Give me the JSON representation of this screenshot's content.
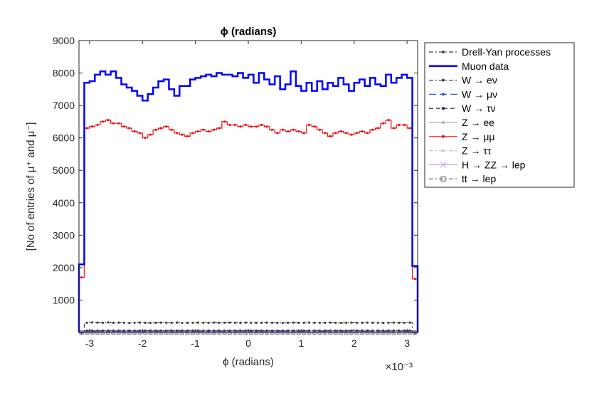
{
  "chart_data": {
    "type": "line",
    "title": "ϕ (radians)",
    "xlabel": "ϕ (radians)",
    "ylabel": "[No of entries of μ⁺ and μ⁻]",
    "x_exponent_label": "×10⁻³",
    "xlim": [
      -3.2,
      3.2
    ],
    "ylim": [
      0,
      9000
    ],
    "x_ticks": [
      -3,
      -2,
      -1,
      0,
      1,
      2,
      3
    ],
    "x_tick_labels": [
      "-3",
      "-2",
      "-1",
      "0",
      "1",
      "2",
      "3"
    ],
    "y_ticks": [
      1000,
      2000,
      3000,
      4000,
      5000,
      6000,
      7000,
      8000,
      9000
    ],
    "y_tick_labels": [
      "1000",
      "2000",
      "3000",
      "4000",
      "5000",
      "6000",
      "7000",
      "8000",
      "9000"
    ],
    "grid": false,
    "legend_position": "outside-right",
    "bin_edges": [
      -3.2,
      -3.1,
      -3.0,
      -2.9,
      -2.8,
      -2.7,
      -2.6,
      -2.5,
      -2.4,
      -2.3,
      -2.2,
      -2.1,
      -2.0,
      -1.9,
      -1.8,
      -1.7,
      -1.6,
      -1.5,
      -1.4,
      -1.3,
      -1.2,
      -1.1,
      -1.0,
      -0.9,
      -0.8,
      -0.7,
      -0.6,
      -0.5,
      -0.4,
      -0.3,
      -0.2,
      -0.1,
      0.0,
      0.1,
      0.2,
      0.3,
      0.4,
      0.5,
      0.6,
      0.7,
      0.8,
      0.9,
      1.0,
      1.1,
      1.2,
      1.3,
      1.4,
      1.5,
      1.6,
      1.7,
      1.8,
      1.9,
      2.0,
      2.1,
      2.2,
      2.3,
      2.4,
      2.5,
      2.6,
      2.7,
      2.8,
      2.9,
      3.0,
      3.1,
      3.2
    ],
    "series": [
      {
        "name": "Drell-Yan processes",
        "style": "step",
        "color": "#404040",
        "dash": "6,3,2,3",
        "marker": "dot",
        "values": [
          0,
          300,
          310,
          305,
          300,
          310,
          300,
          305,
          300,
          295,
          300,
          305,
          300,
          295,
          300,
          305,
          300,
          300,
          305,
          295,
          300,
          300,
          305,
          300,
          300,
          305,
          300,
          300,
          305,
          300,
          300,
          305,
          300,
          300,
          300,
          305,
          300,
          300,
          295,
          300,
          305,
          300,
          300,
          305,
          300,
          300,
          300,
          305,
          300,
          295,
          300,
          305,
          300,
          300,
          305,
          300,
          300,
          295,
          300,
          305,
          300,
          300,
          305,
          0
        ]
      },
      {
        "name": "Muon data",
        "style": "step",
        "color": "#0000ff",
        "dash": "",
        "marker": "none",
        "width": 2.5,
        "values": [
          2100,
          7700,
          7750,
          7950,
          8050,
          7950,
          8050,
          7850,
          7650,
          7550,
          7450,
          7300,
          7150,
          7350,
          7550,
          7750,
          7800,
          7500,
          7300,
          7600,
          7600,
          7800,
          7850,
          7900,
          7950,
          7900,
          8000,
          7950,
          7950,
          7900,
          8000,
          7850,
          7950,
          7700,
          8000,
          7800,
          7650,
          7900,
          7500,
          7650,
          8050,
          7600,
          7450,
          7700,
          7450,
          7750,
          7500,
          7700,
          7600,
          7850,
          7650,
          7450,
          7700,
          7800,
          7600,
          7850,
          7650,
          7600,
          7950,
          7700,
          7850,
          7950,
          7850,
          2050
        ]
      },
      {
        "name": "W → eν",
        "style": "step",
        "color": "#404040",
        "dash": "6,3,2,3",
        "marker": "dot",
        "values": [
          0,
          60,
          60,
          60,
          60,
          60,
          60,
          60,
          60,
          60,
          60,
          60,
          60,
          60,
          60,
          60,
          60,
          60,
          60,
          60,
          60,
          60,
          60,
          60,
          60,
          60,
          60,
          60,
          60,
          60,
          60,
          60,
          60,
          60,
          60,
          60,
          60,
          60,
          60,
          60,
          60,
          60,
          60,
          60,
          60,
          60,
          60,
          60,
          60,
          60,
          60,
          60,
          60,
          60,
          60,
          60,
          60,
          60,
          60,
          60,
          60,
          60,
          60,
          0
        ]
      },
      {
        "name": "W → μν",
        "style": "step",
        "color": "#3355cc",
        "dash": "10,5",
        "marker": "dot",
        "values": [
          0,
          50,
          50,
          50,
          50,
          50,
          50,
          50,
          50,
          50,
          50,
          50,
          50,
          50,
          50,
          50,
          50,
          50,
          50,
          50,
          50,
          50,
          50,
          50,
          50,
          50,
          50,
          50,
          50,
          50,
          50,
          50,
          50,
          50,
          50,
          50,
          50,
          50,
          50,
          50,
          50,
          50,
          50,
          50,
          50,
          50,
          50,
          50,
          50,
          50,
          50,
          50,
          50,
          50,
          50,
          50,
          50,
          50,
          50,
          50,
          50,
          50,
          50,
          0
        ]
      },
      {
        "name": "W → τν",
        "style": "step",
        "color": "#1a1a66",
        "dash": "6,4",
        "marker": "dot",
        "values": [
          0,
          40,
          40,
          40,
          40,
          40,
          40,
          40,
          40,
          40,
          40,
          40,
          40,
          40,
          40,
          40,
          40,
          40,
          40,
          40,
          40,
          40,
          40,
          40,
          40,
          40,
          40,
          40,
          40,
          40,
          40,
          40,
          40,
          40,
          40,
          40,
          40,
          40,
          40,
          40,
          40,
          40,
          40,
          40,
          40,
          40,
          40,
          40,
          40,
          40,
          40,
          40,
          40,
          40,
          40,
          40,
          40,
          40,
          40,
          40,
          40,
          40,
          40,
          0
        ]
      },
      {
        "name": "Z → ee",
        "style": "step",
        "color": "#b0b0b0",
        "dash": "",
        "marker": "dot",
        "values": [
          0,
          30,
          30,
          30,
          30,
          30,
          30,
          30,
          30,
          30,
          30,
          30,
          30,
          30,
          30,
          30,
          30,
          30,
          30,
          30,
          30,
          30,
          30,
          30,
          30,
          30,
          30,
          30,
          30,
          30,
          30,
          30,
          30,
          30,
          30,
          30,
          30,
          30,
          30,
          30,
          30,
          30,
          30,
          30,
          30,
          30,
          30,
          30,
          30,
          30,
          30,
          30,
          30,
          30,
          30,
          30,
          30,
          30,
          30,
          30,
          30,
          30,
          30,
          0
        ]
      },
      {
        "name": "Z → μμ",
        "style": "step",
        "color": "#ee1111",
        "dash": "",
        "marker": "dot",
        "values": [
          1700,
          6300,
          6350,
          6400,
          6500,
          6550,
          6450,
          6450,
          6350,
          6300,
          6200,
          6150,
          6000,
          6100,
          6250,
          6300,
          6350,
          6250,
          6150,
          6100,
          6050,
          6150,
          6200,
          6250,
          6200,
          6250,
          6300,
          6500,
          6400,
          6400,
          6350,
          6400,
          6350,
          6350,
          6400,
          6350,
          6250,
          6150,
          6250,
          6200,
          6250,
          6200,
          6150,
          6400,
          6350,
          6250,
          6150,
          6050,
          6150,
          6200,
          6150,
          6100,
          6150,
          6200,
          6150,
          6250,
          6300,
          6450,
          6550,
          6300,
          6400,
          6400,
          6300,
          1650
        ]
      },
      {
        "name": "Z → ττ",
        "style": "step",
        "color": "#c8c8c8",
        "dash": "6,3,2,3",
        "marker": "dot",
        "values": [
          0,
          20,
          20,
          20,
          20,
          20,
          20,
          20,
          20,
          20,
          20,
          20,
          20,
          20,
          20,
          20,
          20,
          20,
          20,
          20,
          20,
          20,
          20,
          20,
          20,
          20,
          20,
          20,
          20,
          20,
          20,
          20,
          20,
          20,
          20,
          20,
          20,
          20,
          20,
          20,
          20,
          20,
          20,
          20,
          20,
          20,
          20,
          20,
          20,
          20,
          20,
          20,
          20,
          20,
          20,
          20,
          20,
          20,
          20,
          20,
          20,
          20,
          20,
          0
        ]
      },
      {
        "name": "H → ZZ → lep",
        "style": "step",
        "color": "#c8a0f0",
        "dash": "",
        "marker": "x",
        "values": [
          0,
          10,
          10,
          10,
          10,
          10,
          10,
          10,
          10,
          10,
          10,
          10,
          10,
          10,
          10,
          10,
          10,
          10,
          10,
          10,
          10,
          10,
          10,
          10,
          10,
          10,
          10,
          10,
          10,
          10,
          10,
          10,
          10,
          10,
          10,
          10,
          10,
          10,
          10,
          10,
          10,
          10,
          10,
          10,
          10,
          10,
          10,
          10,
          10,
          10,
          10,
          10,
          10,
          10,
          10,
          10,
          10,
          10,
          10,
          10,
          10,
          10,
          10,
          0
        ]
      },
      {
        "name": "tt → lep",
        "style": "step",
        "color": "#606060",
        "dash": "6,3,2,3",
        "marker": "square",
        "values": [
          0,
          5,
          5,
          5,
          5,
          5,
          5,
          5,
          5,
          5,
          5,
          5,
          5,
          5,
          5,
          5,
          5,
          5,
          5,
          5,
          5,
          5,
          5,
          5,
          5,
          5,
          5,
          5,
          5,
          5,
          5,
          5,
          5,
          5,
          5,
          5,
          5,
          5,
          5,
          5,
          5,
          5,
          5,
          5,
          5,
          5,
          5,
          5,
          5,
          5,
          5,
          5,
          5,
          5,
          5,
          5,
          5,
          5,
          5,
          5,
          5,
          5,
          5,
          0
        ]
      }
    ]
  }
}
